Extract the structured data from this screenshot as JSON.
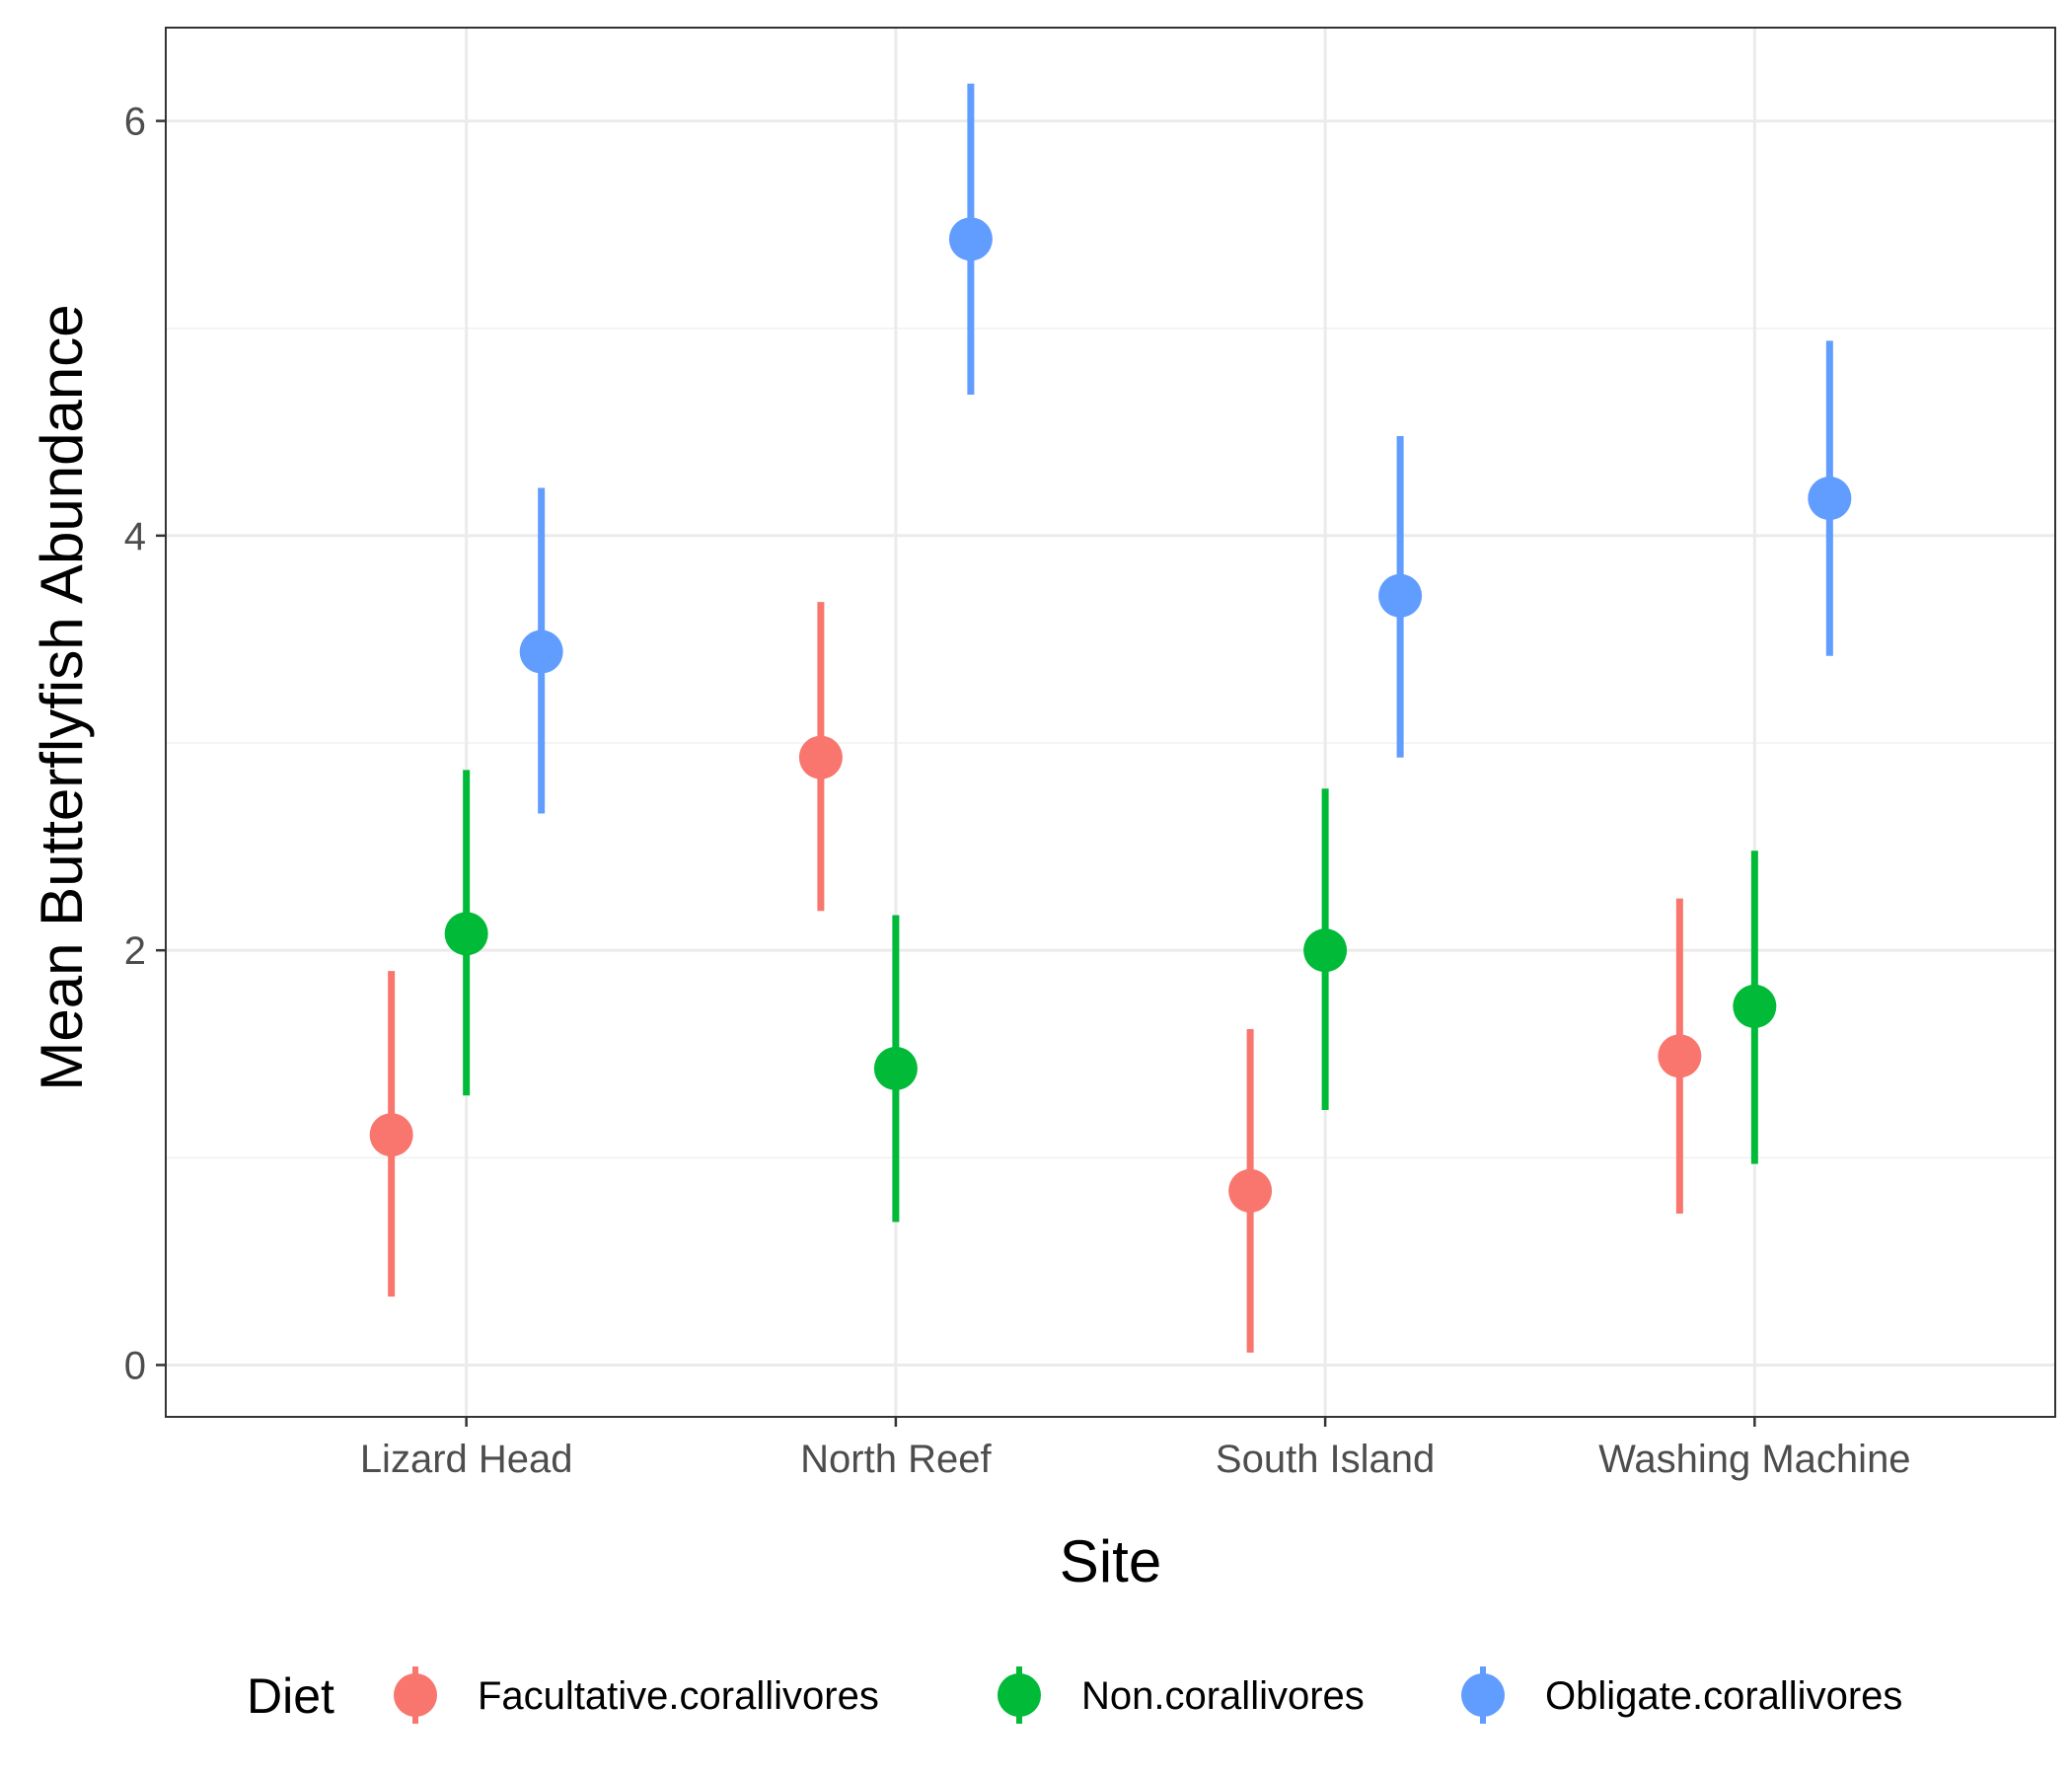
{
  "chart_data": {
    "type": "pointrange",
    "xlabel": "Site",
    "ylabel": "Mean Butterflyfish Abundance",
    "categories": [
      "Lizard Head",
      "North Reef",
      "South Island",
      "Washing Machine"
    ],
    "ylim": [
      -0.25,
      6.45
    ],
    "yticks": [
      0,
      2,
      4,
      6
    ],
    "legend_title": "Diet",
    "legend_position": "bottom",
    "grid": true,
    "series": [
      {
        "name": "Facultative.corallivores",
        "color": "#F8766D",
        "values": [
          1.11,
          2.93,
          0.84,
          1.49
        ],
        "lower": [
          0.33,
          2.19,
          0.06,
          0.73
        ],
        "upper": [
          1.9,
          3.68,
          1.62,
          2.25
        ]
      },
      {
        "name": "Non.corallivores",
        "color": "#00BA38",
        "values": [
          2.08,
          1.43,
          2.0,
          1.73
        ],
        "lower": [
          1.3,
          0.69,
          1.23,
          0.97
        ],
        "upper": [
          2.87,
          2.17,
          2.78,
          2.48
        ]
      },
      {
        "name": "Obligate.corallivores",
        "color": "#619CFF",
        "values": [
          3.44,
          5.43,
          3.71,
          4.18
        ],
        "lower": [
          2.66,
          4.68,
          2.93,
          3.42
        ],
        "upper": [
          4.23,
          6.18,
          4.48,
          4.94
        ]
      }
    ]
  }
}
